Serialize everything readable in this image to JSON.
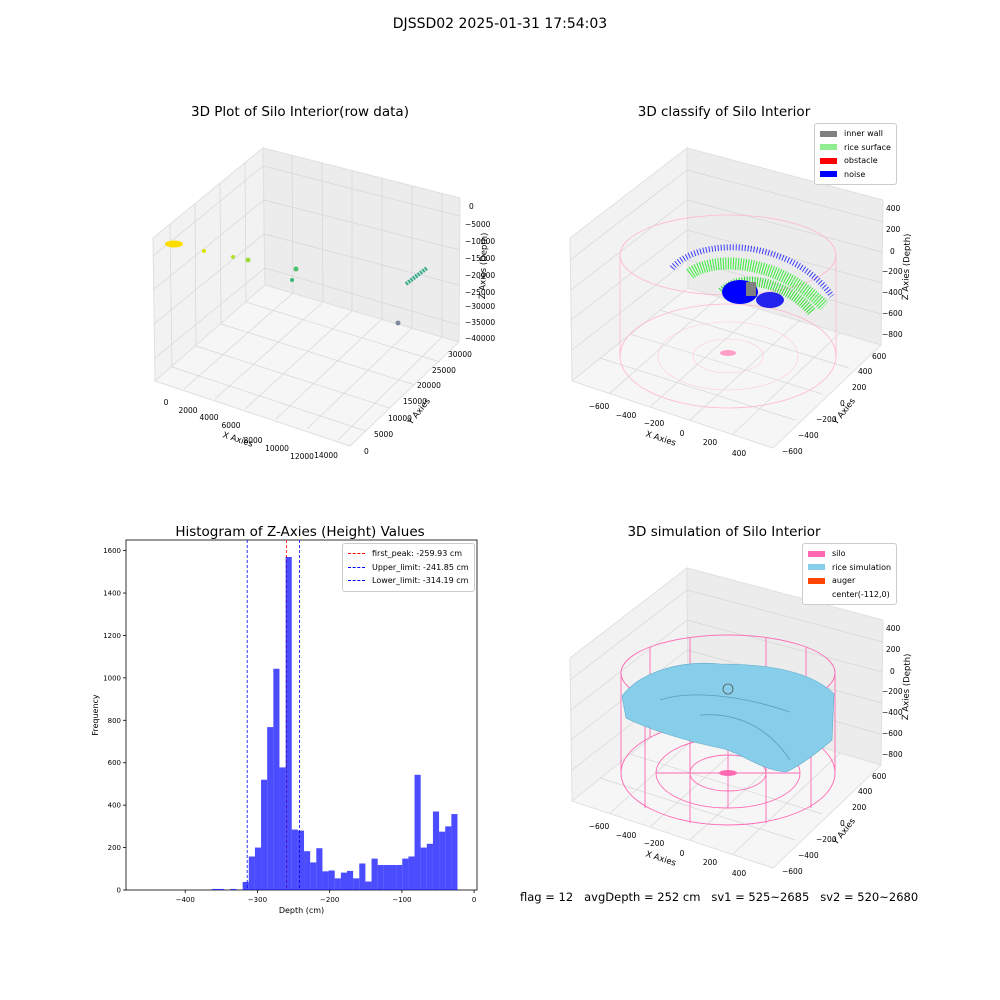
{
  "suptitle": "DJSSD02 2025-01-31 17:54:03",
  "footer": "flag = 12   avgDepth = 252 cm   sv1 = 525~2685   sv2 = 520~2680",
  "colors": {
    "histogram": "#0000ff",
    "first_peak": "#ff0000",
    "limits": "#0000ff",
    "inner_wall": "#808080",
    "rice_surface": "#90ee90",
    "obstacle": "#ff0000",
    "noise": "#0000ff",
    "silo": "#ff69b4",
    "rice_simulation": "#87ceeb",
    "auger": "#ff4500"
  },
  "chart_data": [
    {
      "type": "scatter",
      "title": "3D Plot of Silo Interior(row data)",
      "projection": "3d",
      "xlabel": "X Axies",
      "ylabel": "Y Axies",
      "zlabel": "Z Axies (Depth)",
      "x_ticks": [
        "0",
        "2000",
        "4000",
        "6000",
        "8000",
        "10000",
        "12000",
        "14000"
      ],
      "y_ticks": [
        "0",
        "5000",
        "10000",
        "15000",
        "20000",
        "25000",
        "30000"
      ],
      "z_ticks": [
        "0",
        "−5000",
        "−10000",
        "−15000",
        "−20000",
        "−25000",
        "−30000",
        "−35000",
        "−40000"
      ]
    },
    {
      "type": "scatter",
      "title": "3D classify of Silo Interior",
      "projection": "3d",
      "xlabel": "X Axies",
      "ylabel": "Y Axies",
      "zlabel": "Z Axies (Depth)",
      "x_ticks": [
        "−600",
        "−400",
        "−200",
        "0",
        "200",
        "400"
      ],
      "y_ticks": [
        "−600",
        "−400",
        "−200",
        "0",
        "200",
        "400",
        "600"
      ],
      "z_ticks": [
        "400",
        "200",
        "0",
        "−200",
        "−400",
        "−600",
        "−800"
      ],
      "legend": [
        "inner wall",
        "rice surface",
        "obstacle",
        "noise"
      ],
      "legend_position": "top-right"
    },
    {
      "type": "bar",
      "title": "Histogram of Z-Axies (Height) Values",
      "xlabel": "Depth (cm)",
      "ylabel": "Frequency",
      "xlim": [
        -482,
        4
      ],
      "ylim": [
        0,
        1650
      ],
      "x_ticks": [
        -400,
        -300,
        -200,
        -100,
        0
      ],
      "x_tick_labels": [
        "−400",
        "−300",
        "−200",
        "−100",
        "0"
      ],
      "y_ticks": [
        0,
        200,
        400,
        600,
        800,
        1000,
        1200,
        1400,
        1600
      ],
      "bin_width": 8.5,
      "bins": [
        [
          -363,
          5
        ],
        [
          -354.5,
          5
        ],
        [
          -337.5,
          5
        ],
        [
          -320.5,
          38
        ],
        [
          -312,
          158
        ],
        [
          -303.5,
          200
        ],
        [
          -295,
          520
        ],
        [
          -286.5,
          768
        ],
        [
          -278,
          1043
        ],
        [
          -269.5,
          578
        ],
        [
          -261,
          1570
        ],
        [
          -252.5,
          285
        ],
        [
          -244,
          280
        ],
        [
          -235.5,
          183
        ],
        [
          -227,
          130
        ],
        [
          -218.5,
          197
        ],
        [
          -210,
          88
        ],
        [
          -201.5,
          92
        ],
        [
          -193,
          55
        ],
        [
          -184.5,
          82
        ],
        [
          -176,
          90
        ],
        [
          -167.5,
          55
        ],
        [
          -159,
          125
        ],
        [
          -150.5,
          40
        ],
        [
          -142,
          148
        ],
        [
          -133.5,
          118
        ],
        [
          -125,
          118
        ],
        [
          -116.5,
          118
        ],
        [
          -108,
          118
        ],
        [
          -99.5,
          148
        ],
        [
          -91,
          158
        ],
        [
          -82.5,
          543
        ],
        [
          -74,
          200
        ],
        [
          -65.5,
          218
        ],
        [
          -57,
          370
        ],
        [
          -48.5,
          275
        ],
        [
          -40,
          300
        ],
        [
          -31.5,
          358
        ]
      ],
      "vlines": [
        {
          "name": "first_peak: -259.93 cm",
          "x": -259.93,
          "color": "#ff0000"
        },
        {
          "name": "Upper_limit: -241.85 cm",
          "x": -241.85,
          "color": "#0000ff"
        },
        {
          "name": "Lower_limit: -314.19 cm",
          "x": -314.19,
          "color": "#0000ff"
        }
      ],
      "legend_position": "top-right"
    },
    {
      "type": "scatter",
      "title": "3D simulation of Silo Interior",
      "projection": "3d",
      "xlabel": "X Axies",
      "ylabel": "Y Axies",
      "zlabel": "Z Axies (Depth)",
      "x_ticks": [
        "−600",
        "−400",
        "−200",
        "0",
        "200",
        "400"
      ],
      "y_ticks": [
        "−600",
        "−400",
        "−200",
        "0",
        "200",
        "400",
        "600"
      ],
      "z_ticks": [
        "400",
        "200",
        "0",
        "−200",
        "−400",
        "−600",
        "−800"
      ],
      "legend": [
        "silo",
        "rice simulation",
        "auger",
        "center(-112,0)"
      ],
      "legend_position": "top-right"
    }
  ]
}
